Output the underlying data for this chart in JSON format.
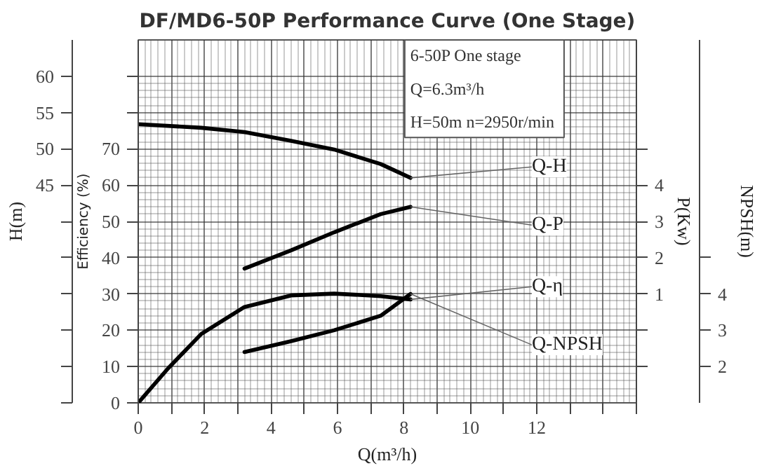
{
  "chart_data": [
    {
      "type": "line",
      "title": "DF/MD6-50P Performance Curve (One Stage)",
      "xlabel": "Q(m³/h)",
      "ylabel": "H(m)",
      "y2label": "Efficiency (%)",
      "y3label": "P(Kw)",
      "annotations": [
        "6-50P  One stage",
        "Q=6.3m³/h",
        "H=50m  n=2950r/min"
      ],
      "xlim": [
        0,
        15
      ],
      "xticks": [
        0,
        {
          "value": 1,
          "label": null
        },
        2,
        {
          "value": 3,
          "label": null
        },
        4,
        {
          "value": 5,
          "label": null
        },
        6,
        {
          "value": 7,
          "label": null
        },
        8,
        {
          "value": 9,
          "label": null
        },
        10,
        {
          "value": 11,
          "label": null
        },
        12,
        {
          "value": 13,
          "label": null
        },
        {
          "value": 14,
          "label": null
        },
        {
          "value": 15,
          "label": null
        }
      ],
      "ylim": [
        15,
        65
      ],
      "yticks": [
        {
          "value": 15,
          "label": null
        },
        {
          "value": 20,
          "label": null
        },
        {
          "value": 25,
          "label": null
        },
        {
          "value": 30,
          "label": null
        },
        {
          "value": 35,
          "label": null
        },
        {
          "value": 40,
          "label": null
        },
        45,
        50,
        55,
        60
      ],
      "y2lim": [
        0,
        100
      ],
      "y2ticks": [
        0,
        10,
        20,
        30,
        40,
        50,
        60,
        70,
        {
          "value": 80,
          "label": null
        },
        {
          "value": 90,
          "label": null
        }
      ],
      "y3lim": [
        -2,
        8
      ],
      "y3ticks": [
        {
          "value": -1,
          "label": null
        },
        {
          "value": 0,
          "label": null
        },
        1,
        2,
        3,
        4,
        {
          "value": 5,
          "label": null
        }
      ],
      "grid": true,
      "line_style": "solid",
      "series": [
        {
          "name": "Q-H",
          "color": "#000000",
          "axis": "y",
          "x": [
            0,
            1.9,
            3.2,
            4.6,
            5.9,
            7.3,
            8.2
          ],
          "values": [
            53.4,
            52.9,
            52.3,
            51.1,
            49.9,
            47.9,
            46.0
          ]
        },
        {
          "name": "Q-P",
          "color": "#000000",
          "axis": "y3",
          "x": [
            3.2,
            4.6,
            5.9,
            7.3,
            8.2
          ],
          "values": [
            1.7,
            2.2,
            2.7,
            3.2,
            3.4
          ]
        },
        {
          "name": "Q-η",
          "color": "#000000",
          "axis": "y2",
          "x": [
            0,
            0.9,
            1.9,
            3.2,
            4.6,
            5.9,
            7.3,
            8.2
          ],
          "values": [
            0,
            9.5,
            19.0,
            26.4,
            29.6,
            30.1,
            29.4,
            28.5
          ]
        }
      ]
    },
    {
      "type": "line",
      "ylabel": "NPSH(m)",
      "xlim": [
        0,
        15
      ],
      "ylim": [
        1,
        11
      ],
      "yticks": [
        2,
        3,
        4,
        {
          "value": 5,
          "label": null
        }
      ],
      "tick_labels": "y",
      "line_style": "solid",
      "series": [
        {
          "name": "Q-NPSH",
          "color": "#000000",
          "x": [
            3.2,
            4.6,
            5.9,
            7.3,
            8.2
          ],
          "values": [
            2.4,
            2.7,
            3.0,
            3.4,
            4.0
          ]
        }
      ]
    }
  ]
}
